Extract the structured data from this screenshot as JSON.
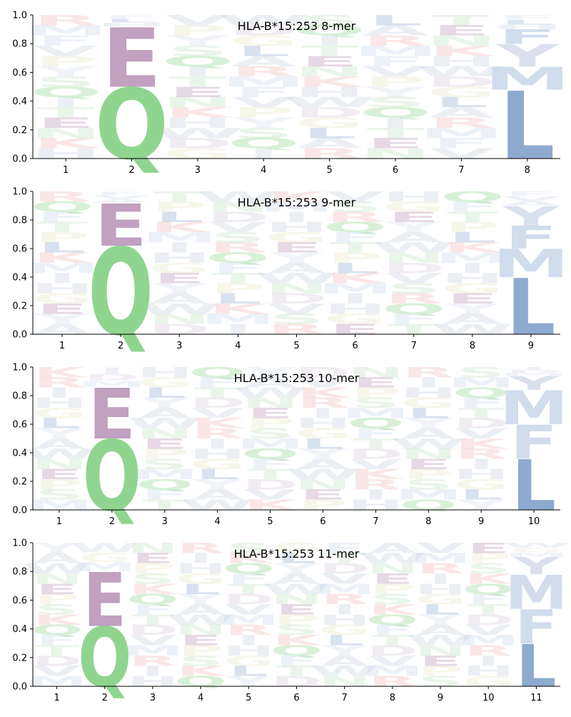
{
  "chart_data": [
    {
      "type": "sequence-logo",
      "title": "HLA-B*15:253 8-mer",
      "xlabel": "",
      "ylabel": "",
      "ylim": [
        0,
        1
      ],
      "yticks": [
        "0.0",
        "0.2",
        "0.4",
        "0.6",
        "0.8",
        "1.0"
      ],
      "positions": [
        "1",
        "2",
        "3",
        "4",
        "5",
        "6",
        "7",
        "8"
      ],
      "anchors": [
        {
          "position": "2",
          "stack": [
            {
              "letter": "Q",
              "height": 0.5
            },
            {
              "letter": "E",
              "height": 0.42
            }
          ]
        },
        {
          "position": "8",
          "stack": [
            {
              "letter": "L",
              "height": 0.48
            },
            {
              "letter": "M",
              "height": 0.16
            },
            {
              "letter": "Y",
              "height": 0.16
            },
            {
              "letter": "F",
              "height": 0.1
            }
          ]
        }
      ],
      "background": [
        "H",
        "R",
        "S",
        "K",
        "A",
        "Y",
        "N",
        "L",
        "P",
        "E",
        "G",
        "V",
        "T",
        "D",
        "F",
        "I",
        "W",
        "M",
        "Q"
      ]
    },
    {
      "type": "sequence-logo",
      "title": "HLA-B*15:253 9-mer",
      "xlabel": "",
      "ylabel": "",
      "ylim": [
        0,
        1
      ],
      "yticks": [
        "0.0",
        "0.2",
        "0.4",
        "0.6",
        "0.8",
        "1.0"
      ],
      "positions": [
        "1",
        "2",
        "3",
        "4",
        "5",
        "6",
        "7",
        "8",
        "9"
      ],
      "anchors": [
        {
          "position": "2",
          "stack": [
            {
              "letter": "Q",
              "height": 0.62
            },
            {
              "letter": "E",
              "height": 0.3
            }
          ]
        },
        {
          "position": "9",
          "stack": [
            {
              "letter": "L",
              "height": 0.4
            },
            {
              "letter": "M",
              "height": 0.2
            },
            {
              "letter": "F",
              "height": 0.16
            },
            {
              "letter": "Y",
              "height": 0.14
            }
          ]
        }
      ],
      "background": [
        "M",
        "A",
        "R",
        "K",
        "Y",
        "S",
        "L",
        "E",
        "V",
        "P",
        "G",
        "D",
        "T",
        "H",
        "N",
        "F",
        "I",
        "W",
        "Q"
      ]
    },
    {
      "type": "sequence-logo",
      "title": "HLA-B*15:253 10-mer",
      "xlabel": "",
      "ylabel": "",
      "ylim": [
        0,
        1
      ],
      "yticks": [
        "0.0",
        "0.2",
        "0.4",
        "0.6",
        "0.8",
        "1.0"
      ],
      "positions": [
        "1",
        "2",
        "3",
        "4",
        "5",
        "6",
        "7",
        "8",
        "9",
        "10"
      ],
      "anchors": [
        {
          "position": "2",
          "stack": [
            {
              "letter": "Q",
              "height": 0.5
            },
            {
              "letter": "E",
              "height": 0.36
            }
          ]
        },
        {
          "position": "10",
          "stack": [
            {
              "letter": "L",
              "height": 0.36
            },
            {
              "letter": "F",
              "height": 0.24
            },
            {
              "letter": "M",
              "height": 0.24
            },
            {
              "letter": "Y",
              "height": 0.1
            }
          ]
        }
      ],
      "background": [
        "R",
        "A",
        "M",
        "K",
        "Y",
        "S",
        "V",
        "L",
        "P",
        "D",
        "G",
        "E",
        "T",
        "H",
        "N",
        "F",
        "I",
        "W",
        "Q"
      ]
    },
    {
      "type": "sequence-logo",
      "title": "HLA-B*15:253 11-mer",
      "xlabel": "",
      "ylabel": "",
      "ylim": [
        0,
        1
      ],
      "yticks": [
        "0.0",
        "0.2",
        "0.4",
        "0.6",
        "0.8",
        "1.0"
      ],
      "positions": [
        "1",
        "2",
        "3",
        "4",
        "5",
        "6",
        "7",
        "8",
        "9",
        "10",
        "11"
      ],
      "anchors": [
        {
          "position": "2",
          "stack": [
            {
              "letter": "Q",
              "height": 0.42
            },
            {
              "letter": "E",
              "height": 0.38
            }
          ]
        },
        {
          "position": "11",
          "stack": [
            {
              "letter": "L",
              "height": 0.3
            },
            {
              "letter": "F",
              "height": 0.24
            },
            {
              "letter": "M",
              "height": 0.24
            },
            {
              "letter": "Y",
              "height": 0.12
            }
          ]
        }
      ],
      "background": [
        "R",
        "A",
        "K",
        "M",
        "Y",
        "S",
        "V",
        "L",
        "P",
        "D",
        "G",
        "E",
        "T",
        "H",
        "N",
        "F",
        "I",
        "W",
        "Q"
      ]
    }
  ],
  "letter_colors": {
    "Q": "#8fd58f",
    "E": "#b68fb5",
    "L": "#8eaace",
    "M": "#c9d6ea",
    "F": "#c9d6ea",
    "Y": "#d3dcea",
    "A": "#c5d0e0",
    "R": "#f2b8b8",
    "K": "#f2b8b8",
    "H": "#c5d0e0",
    "D": "#d8c7da",
    "P": "#e8e4c2",
    "G": "#e8e4c2",
    "S": "#bfe3bf",
    "T": "#bfe3bf",
    "N": "#bfe3bf",
    "V": "#c5d0e0",
    "I": "#c5d0e0",
    "W": "#c5d0e0",
    "C": "#d4d4d4"
  }
}
